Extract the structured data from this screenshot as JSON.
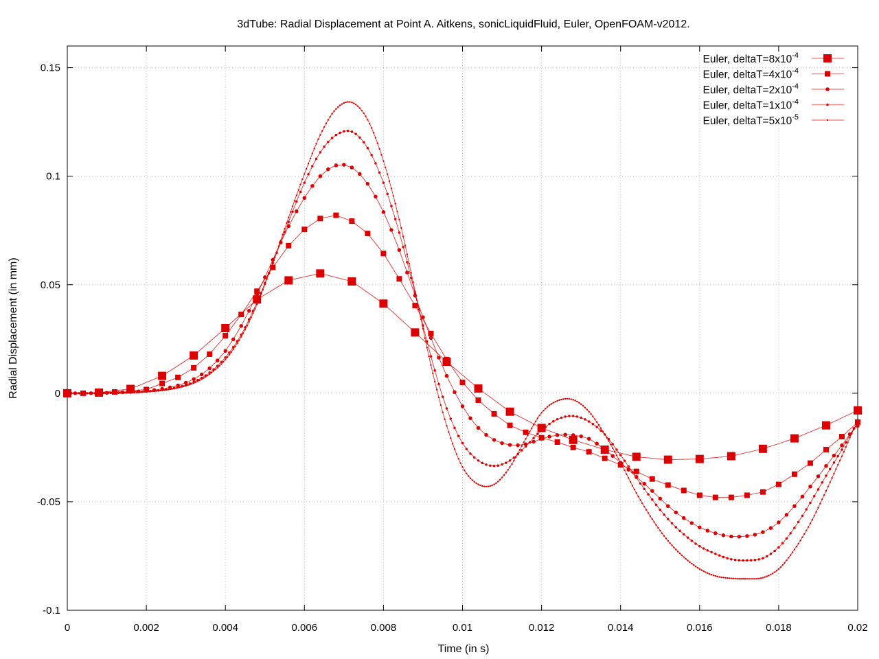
{
  "chart_data": {
    "type": "line",
    "title": "3dTube: Radial Displacement at Point A. Aitkens, sonicLiquidFluid, Euler, OpenFOAM-v2012.",
    "xlabel": "Time (in s)",
    "ylabel": "Radial Displacement (in mm)",
    "xlim": [
      0,
      0.02
    ],
    "ylim": [
      -0.1,
      0.16
    ],
    "xticks": [
      0,
      0.002,
      0.004,
      0.006,
      0.008,
      0.01,
      0.012,
      0.014,
      0.016,
      0.018,
      0.02
    ],
    "xtick_labels": [
      "0",
      "0.002",
      "0.004",
      "0.006",
      "0.008",
      "0.01",
      "0.012",
      "0.014",
      "0.016",
      "0.018",
      "0.02"
    ],
    "yticks": [
      -0.1,
      -0.05,
      0,
      0.05,
      0.1,
      0.15
    ],
    "ytick_labels": [
      "-0.1",
      "-0.05",
      "0",
      "0.05",
      "0.1",
      "0.15"
    ],
    "grid": true,
    "legend_position": "top-right",
    "color": "#dd0000",
    "series": [
      {
        "name": "Euler, deltaT=8x10",
        "exp": "-4",
        "dt": 0.0008,
        "marker": "square-large",
        "x_step": 0.0008,
        "values": [
          0,
          0.0003,
          0.002,
          0.008,
          0.0174,
          0.03,
          0.0432,
          0.052,
          0.0552,
          0.0515,
          0.0413,
          0.028,
          0.0145,
          0.0022,
          -0.0085,
          -0.016,
          -0.0215,
          -0.026,
          -0.0293,
          -0.0306,
          -0.0303,
          -0.029,
          -0.0256,
          -0.0208,
          -0.0148,
          -0.0079
        ]
      },
      {
        "name": "Euler, deltaT=4x10",
        "exp": "-4",
        "dt": 0.0004,
        "marker": "square",
        "x_step": 0.0004,
        "values": [
          0,
          0,
          0.0003,
          0.0006,
          0.0012,
          0.0017,
          0.0045,
          0.0073,
          0.0117,
          0.018,
          0.0265,
          0.0363,
          0.047,
          0.058,
          0.068,
          0.0755,
          0.0805,
          0.082,
          0.0793,
          0.0736,
          0.0644,
          0.0527,
          0.0404,
          0.0275,
          0.0155,
          0.005,
          -0.0032,
          -0.0095,
          -0.0148,
          -0.018,
          -0.0205,
          -0.0225,
          -0.025,
          -0.027,
          -0.03,
          -0.033,
          -0.036,
          -0.0395,
          -0.0423,
          -0.0448,
          -0.047,
          -0.048,
          -0.048,
          -0.047,
          -0.0455,
          -0.042,
          -0.0373,
          -0.0322,
          -0.026,
          -0.02,
          -0.0133
        ]
      },
      {
        "name": "Euler, deltaT=2x10",
        "exp": "-4",
        "dt": 0.0002,
        "marker": "circle",
        "x_step": 0.0004,
        "values": [
          0,
          0,
          0.0001,
          0.0003,
          0.0006,
          0.0011,
          0.002,
          0.0036,
          0.0065,
          0.0115,
          0.0195,
          0.031,
          0.0455,
          0.0615,
          0.077,
          0.09,
          0.1,
          0.105,
          0.104,
          0.0965,
          0.0835,
          0.066,
          0.045,
          0.0255,
          0.008,
          -0.006,
          -0.016,
          -0.0215,
          -0.0238,
          -0.0235,
          -0.021,
          -0.0193,
          -0.0193,
          -0.021,
          -0.026,
          -0.032,
          -0.0385,
          -0.045,
          -0.052,
          -0.0575,
          -0.0618,
          -0.0645,
          -0.066,
          -0.0658,
          -0.064,
          -0.0595,
          -0.052,
          -0.043,
          -0.0335,
          -0.024,
          -0.015
        ]
      },
      {
        "name": "Euler, deltaT=1x10",
        "exp": "-4",
        "dt": 0.0001,
        "marker": "dot",
        "x_step": 0.0004,
        "values": [
          0,
          0,
          0,
          0.0002,
          0.0004,
          0.0008,
          0.0015,
          0.0028,
          0.0052,
          0.0095,
          0.0165,
          0.027,
          0.042,
          0.06,
          0.079,
          0.097,
          0.111,
          0.119,
          0.1205,
          0.113,
          0.097,
          0.074,
          0.046,
          0.017,
          -0.007,
          -0.023,
          -0.031,
          -0.0335,
          -0.031,
          -0.0245,
          -0.017,
          -0.012,
          -0.0105,
          -0.013,
          -0.019,
          -0.0285,
          -0.039,
          -0.049,
          -0.058,
          -0.065,
          -0.0705,
          -0.074,
          -0.0765,
          -0.077,
          -0.076,
          -0.071,
          -0.062,
          -0.0505,
          -0.038,
          -0.026,
          -0.014
        ]
      },
      {
        "name": "Euler, deltaT=5x10",
        "exp": "-5",
        "dt": 5e-05,
        "marker": "tiny-dot",
        "x_step": 0.0004,
        "values": [
          0,
          0,
          0,
          0.0001,
          0.0003,
          0.0007,
          0.0013,
          0.0025,
          0.0047,
          0.0088,
          0.0155,
          0.026,
          0.041,
          0.06,
          0.081,
          0.101,
          0.119,
          0.131,
          0.134,
          0.126,
          0.107,
          0.08,
          0.047,
          0.013,
          -0.015,
          -0.034,
          -0.042,
          -0.042,
          -0.034,
          -0.021,
          -0.009,
          -0.0035,
          -0.003,
          -0.0085,
          -0.019,
          -0.032,
          -0.046,
          -0.058,
          -0.068,
          -0.0755,
          -0.081,
          -0.0842,
          -0.0853,
          -0.0855,
          -0.085,
          -0.081,
          -0.072,
          -0.06,
          -0.045,
          -0.029,
          -0.014
        ]
      }
    ]
  }
}
